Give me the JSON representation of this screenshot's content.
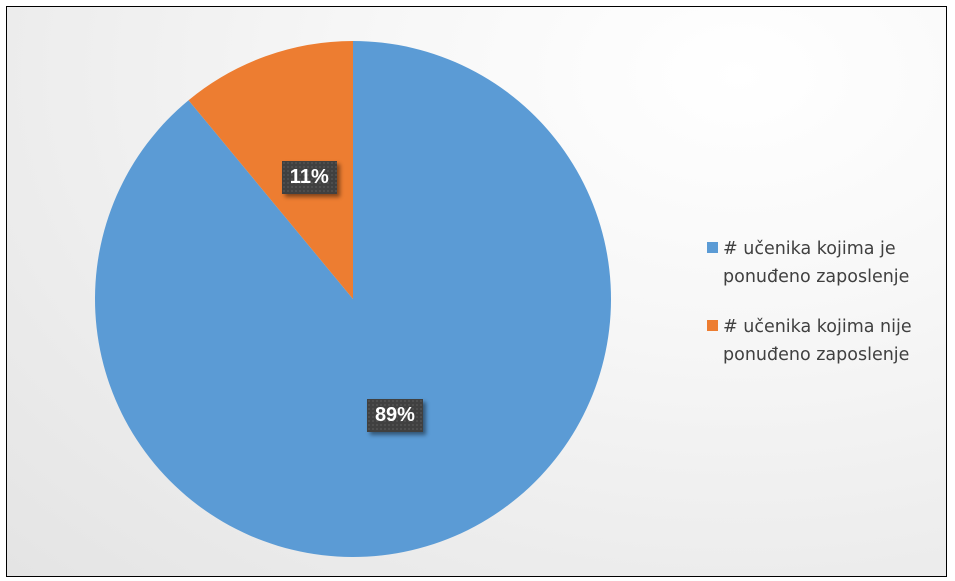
{
  "chart_data": {
    "type": "pie",
    "slices": [
      {
        "name": "# učenika kojima je ponuđeno zaposlenje",
        "value": 89,
        "label": "89%",
        "color": "#5b9bd5"
      },
      {
        "name": "# učenika kojima nije ponuđeno zaposlenje",
        "value": 11,
        "label": "11%",
        "color": "#ed7d31"
      }
    ],
    "start_angle": "12 o'clock",
    "direction": "clockwise",
    "legend_position": "right",
    "legend": [
      {
        "lines": [
          "# učenika kojima je",
          "ponuđeno zaposlenje"
        ],
        "color": "#5b9bd5"
      },
      {
        "lines": [
          "# učenika kojima nije",
          "ponuđeno zaposlenje"
        ],
        "color": "#ed7d31"
      }
    ]
  }
}
